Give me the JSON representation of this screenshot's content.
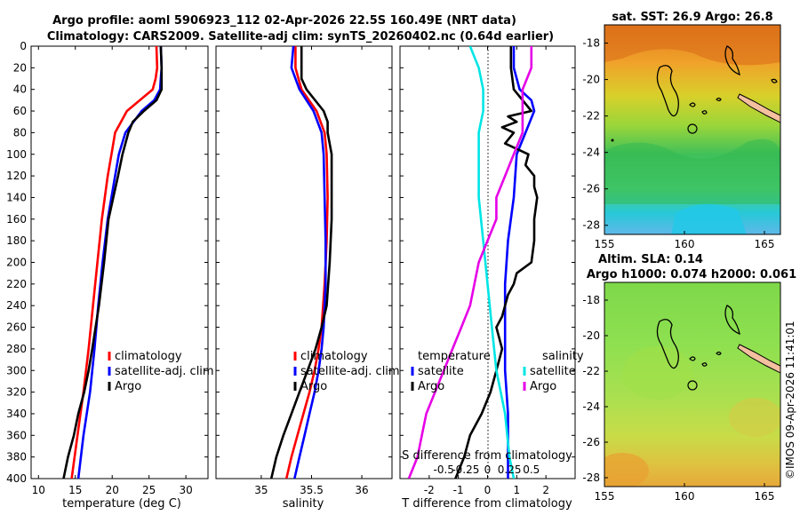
{
  "title": {
    "line1": "Argo profile: aoml 5906923_112 02-Apr-2026 22.5S 160.49E (NRT data)",
    "line2": "Climatology: CARS2009. Satellite-adj clim: synTS_20260402.nc (0.64d earlier)"
  },
  "watermark": "©IMOS 09-Apr-2026 11:41:01",
  "colors": {
    "climatology": "#ff0000",
    "satellite": "#0000ff",
    "argo": "#000000",
    "s_satellite": "#00e5e5",
    "s_argo": "#e600e6",
    "land": "#f4c0a0"
  },
  "depth_ticks": [
    "0",
    "20",
    "40",
    "60",
    "80",
    "100",
    "120",
    "140",
    "160",
    "180",
    "200",
    "220",
    "240",
    "260",
    "280",
    "300",
    "320",
    "340",
    "360",
    "380",
    "400"
  ],
  "chart_data": [
    {
      "type": "line",
      "name": "temperature",
      "xlabel": "temperature (deg C)",
      "xlim": [
        9,
        33
      ],
      "ylim": [
        0,
        400
      ],
      "xticks": [
        "10",
        "15",
        "20",
        "25",
        "30"
      ],
      "xtick_values": [
        10,
        15,
        20,
        25,
        30
      ],
      "legend": [
        "climatology",
        "satellite-adj. clim",
        "Argo"
      ],
      "series": [
        {
          "name": "climatology",
          "depth": [
            0,
            20,
            30,
            40,
            60,
            80,
            100,
            120,
            160,
            200,
            240,
            280,
            320,
            360,
            400
          ],
          "values": [
            26.0,
            26.1,
            25.9,
            25.5,
            22.0,
            20.4,
            19.9,
            19.4,
            18.6,
            18.0,
            17.4,
            16.8,
            16.1,
            15.3,
            14.5
          ]
        },
        {
          "name": "satellite-adj. clim",
          "depth": [
            0,
            20,
            30,
            40,
            50,
            60,
            80,
            100,
            120,
            160,
            200,
            240,
            280,
            320,
            360,
            400
          ],
          "values": [
            26.6,
            26.7,
            26.6,
            26.5,
            25.7,
            24.0,
            21.8,
            20.9,
            20.4,
            19.4,
            18.7,
            18.1,
            17.6,
            17.0,
            16.1,
            15.4
          ]
        },
        {
          "name": "Argo",
          "depth": [
            0,
            20,
            40,
            50,
            60,
            70,
            80,
            100,
            120,
            160,
            200,
            240,
            280,
            300,
            320,
            340,
            360,
            380,
            400
          ],
          "values": [
            26.6,
            26.7,
            26.7,
            26.0,
            24.3,
            22.8,
            22.2,
            21.4,
            20.8,
            19.5,
            18.9,
            18.2,
            17.3,
            16.8,
            16.2,
            15.4,
            14.8,
            14.0,
            13.4
          ]
        }
      ]
    },
    {
      "type": "line",
      "name": "salinity",
      "xlabel": "salinity",
      "xlim": [
        34.55,
        36.3
      ],
      "ylim": [
        0,
        400
      ],
      "xticks": [
        "35",
        "35.5",
        "36"
      ],
      "xtick_values": [
        35,
        35.5,
        36
      ],
      "legend": [
        "climatology",
        "satellite-adj. clim",
        "Argo"
      ],
      "series": [
        {
          "name": "climatology",
          "depth": [
            0,
            20,
            40,
            60,
            80,
            100,
            140,
            180,
            220,
            260,
            280,
            300,
            320,
            340,
            360,
            380,
            400
          ],
          "values": [
            35.34,
            35.34,
            35.4,
            35.55,
            35.63,
            35.65,
            35.66,
            35.65,
            35.63,
            35.6,
            35.57,
            35.53,
            35.48,
            35.42,
            35.36,
            35.3,
            35.25
          ]
        },
        {
          "name": "satellite-adj. clim",
          "depth": [
            0,
            20,
            40,
            60,
            80,
            100,
            140,
            180,
            220,
            260,
            280,
            300,
            320,
            340,
            360,
            380,
            400
          ],
          "values": [
            35.32,
            35.3,
            35.38,
            35.52,
            35.6,
            35.62,
            35.63,
            35.64,
            35.64,
            35.62,
            35.6,
            35.57,
            35.53,
            35.48,
            35.43,
            35.38,
            35.33
          ]
        },
        {
          "name": "Argo",
          "depth": [
            0,
            20,
            30,
            40,
            60,
            70,
            80,
            100,
            120,
            160,
            200,
            240,
            260,
            280,
            300,
            320,
            340,
            360,
            380,
            400
          ],
          "values": [
            35.4,
            35.4,
            35.4,
            35.45,
            35.62,
            35.66,
            35.66,
            35.7,
            35.7,
            35.7,
            35.68,
            35.65,
            35.6,
            35.54,
            35.46,
            35.38,
            35.3,
            35.22,
            35.15,
            35.1
          ]
        }
      ]
    },
    {
      "type": "line",
      "name": "difference from climatology",
      "xlabel": "T difference from climatology",
      "s_axis_label": "S difference from climatology",
      "xlim": [
        -3,
        3
      ],
      "ylim": [
        0,
        400
      ],
      "xticks": [
        "-2",
        "-1",
        "0",
        "1",
        "2"
      ],
      "xtick_values": [
        -2,
        -1,
        0,
        1,
        2
      ],
      "s_ticks": [
        "-0.5",
        "-0.25",
        "0",
        "0.25",
        "0.5"
      ],
      "s_tick_x_values": [
        -1.5,
        -0.75,
        0,
        0.75,
        1.5
      ],
      "legend_temperature": {
        "title": "temperature",
        "items": [
          "satellite",
          "Argo"
        ]
      },
      "legend_salinity": {
        "title": "salinity",
        "items": [
          "satellite",
          "Argo"
        ]
      },
      "series": [
        {
          "name": "temperature satellite",
          "depth": [
            0,
            20,
            40,
            50,
            60,
            80,
            100,
            140,
            180,
            220,
            260,
            300,
            340,
            380,
            400
          ],
          "values": [
            0.9,
            0.9,
            1.1,
            1.5,
            1.6,
            1.3,
            1.0,
            0.9,
            0.7,
            0.6,
            0.6,
            0.6,
            0.7,
            0.7,
            0.7
          ]
        },
        {
          "name": "temperature Argo",
          "depth": [
            0,
            20,
            40,
            60,
            65,
            70,
            75,
            80,
            90,
            100,
            110,
            120,
            130,
            140,
            160,
            180,
            200,
            210,
            220,
            230,
            240,
            250,
            260,
            280,
            300,
            320,
            340,
            360,
            380,
            400
          ],
          "values": [
            0.8,
            0.8,
            0.9,
            1.5,
            0.7,
            1.0,
            0.5,
            0.9,
            0.6,
            1.4,
            1.3,
            1.6,
            1.6,
            1.7,
            1.6,
            1.6,
            1.5,
            1.0,
            0.9,
            0.7,
            0.6,
            0.5,
            0.3,
            0.5,
            0.3,
            0.1,
            -0.2,
            -0.6,
            -0.8,
            -1.1
          ]
        },
        {
          "name": "salinity satellite",
          "depth": [
            0,
            20,
            40,
            60,
            80,
            100,
            140,
            180,
            220,
            260,
            300,
            340,
            380,
            400
          ],
          "values": [
            -0.2,
            -0.1,
            -0.05,
            -0.05,
            -0.1,
            -0.1,
            -0.1,
            -0.05,
            0.0,
            0.05,
            0.1,
            0.2,
            0.25,
            0.3
          ]
        },
        {
          "name": "salinity Argo",
          "depth": [
            0,
            20,
            40,
            60,
            80,
            100,
            120,
            140,
            160,
            180,
            200,
            220,
            240,
            260,
            280,
            300,
            320,
            340,
            360,
            380,
            400
          ],
          "values": [
            0.5,
            0.5,
            0.4,
            0.4,
            0.4,
            0.3,
            0.2,
            0.1,
            0.1,
            0.0,
            -0.1,
            -0.15,
            -0.2,
            -0.3,
            -0.4,
            -0.5,
            -0.6,
            -0.7,
            -0.75,
            -0.8,
            -0.9
          ]
        }
      ]
    },
    {
      "type": "heatmap",
      "name": "sat SST map",
      "title": "sat. SST: 26.9 Argo: 26.8",
      "xlim": [
        155,
        166
      ],
      "ylim": [
        -28.5,
        -17
      ],
      "xticks": [
        "155",
        "160",
        "165"
      ],
      "xtick_values": [
        155,
        160,
        165
      ],
      "yticks": [
        "-18",
        "-20",
        "-22",
        "-24",
        "-26",
        "-28"
      ],
      "ytick_values": [
        -18,
        -20,
        -22,
        -24,
        -26,
        -28
      ],
      "argo_position": [
        160.49,
        -22.5
      ]
    },
    {
      "type": "heatmap",
      "name": "altimetry SLA map",
      "title_line1": "Altim. SLA: 0.14",
      "title_line2": "Argo h1000: 0.074 h2000: 0.061",
      "xlim": [
        155,
        166
      ],
      "ylim": [
        -28.5,
        -17
      ],
      "xticks": [
        "155",
        "160",
        "165"
      ],
      "xtick_values": [
        155,
        160,
        165
      ],
      "yticks": [
        "-18",
        "-20",
        "-22",
        "-24",
        "-26",
        "-28"
      ],
      "ytick_values": [
        -18,
        -20,
        -22,
        -24,
        -26,
        -28
      ],
      "argo_position": [
        160.49,
        -22.5
      ]
    }
  ]
}
